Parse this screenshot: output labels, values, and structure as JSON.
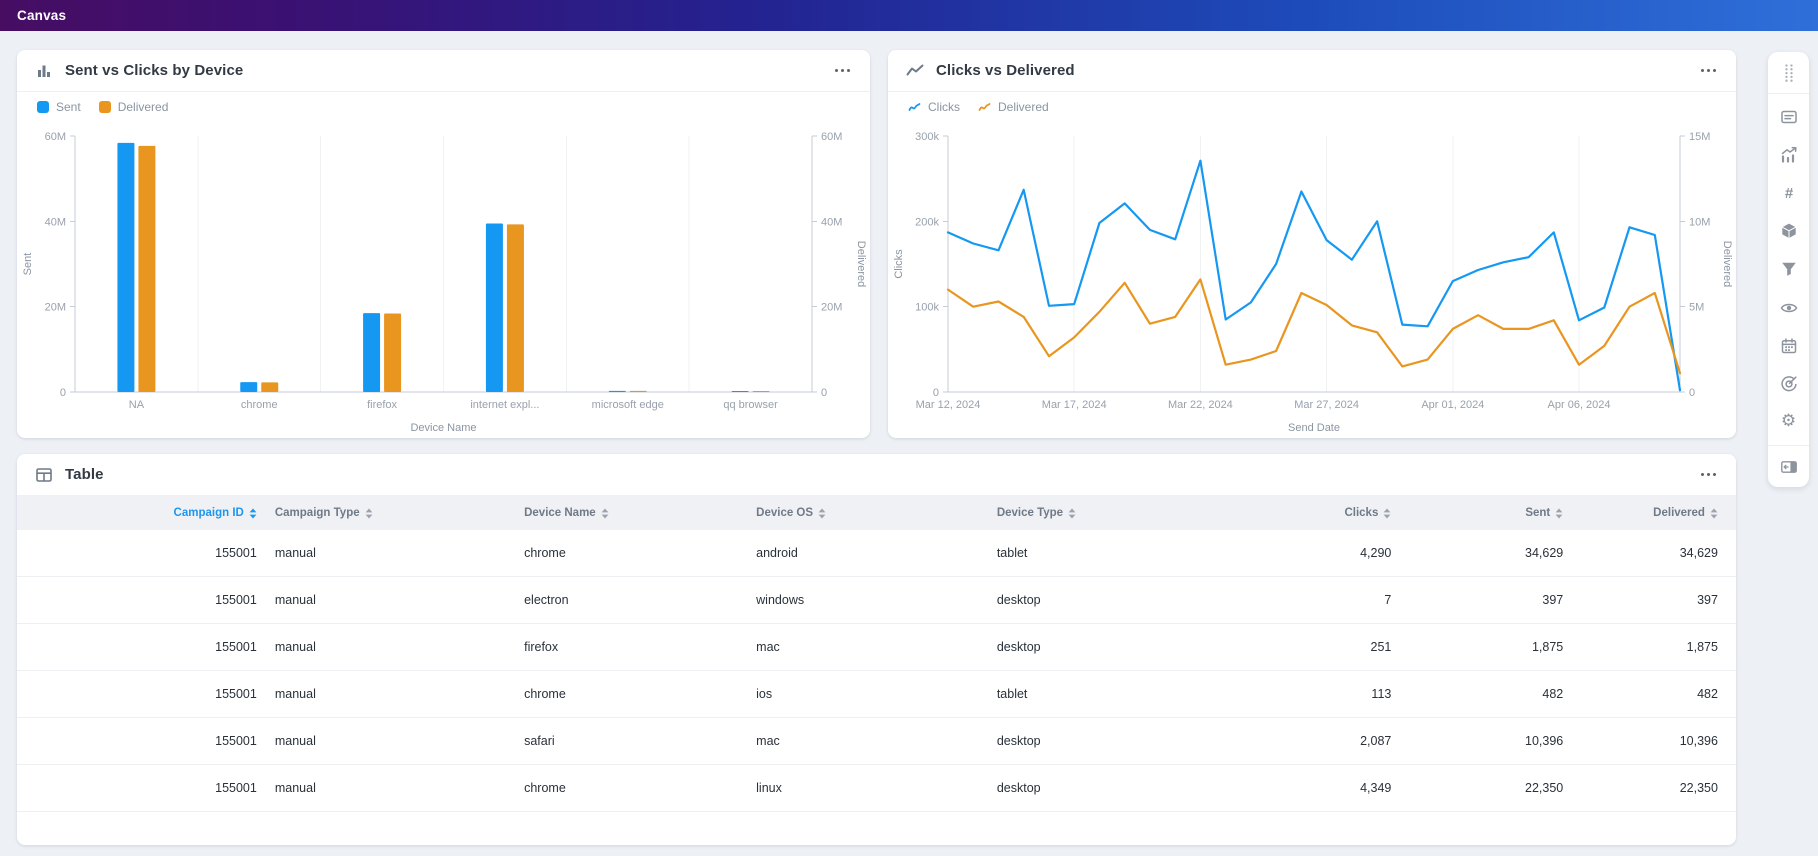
{
  "top_bar": {
    "title": "Canvas"
  },
  "colors": {
    "blue": "#1598f2",
    "orange": "#e8961f",
    "axis_line": "#c6ccd4",
    "grid_line": "#f1f2f4",
    "tick_text": "#98a1ac",
    "axis_title": "#8b95a1",
    "sorted_header": "#1a97f0"
  },
  "cards": {
    "bar": {
      "title": "Sent vs Clicks by Device"
    },
    "line": {
      "title": "Clicks vs Delivered"
    },
    "table": {
      "title": "Table"
    }
  },
  "chart_data": [
    {
      "type": "bar",
      "title": "Sent vs Clicks by Device",
      "categories": [
        "NA",
        "chrome",
        "firefox",
        "internet expl...",
        "microsoft edge",
        "qq browser"
      ],
      "series": [
        {
          "name": "Sent",
          "axis": "left",
          "color": "#1598f2",
          "values": [
            58400000,
            2300000,
            18500000,
            39500000,
            260000,
            130000
          ]
        },
        {
          "name": "Delivered",
          "axis": "right",
          "color": "#e8961f",
          "values": [
            57700000,
            2250000,
            18400000,
            39300000,
            250000,
            150000
          ]
        }
      ],
      "xlabel": "Device Name",
      "ylabel_left": "Sent",
      "ylabel_right": "Delivered",
      "ylim_left": [
        0,
        60000000
      ],
      "ylim_right": [
        0,
        60000000
      ],
      "yticks_left": [
        "0",
        "20M",
        "40M",
        "60M"
      ],
      "yticks_right": [
        "0",
        "20M",
        "40M",
        "60M"
      ],
      "legend_position": "top-left",
      "grid": "vertical-category-boundaries"
    },
    {
      "type": "line",
      "title": "Clicks vs Delivered",
      "x": [
        "Mar 12, 2024",
        "Mar 13, 2024",
        "Mar 14, 2024",
        "Mar 15, 2024",
        "Mar 16, 2024",
        "Mar 17, 2024",
        "Mar 18, 2024",
        "Mar 19, 2024",
        "Mar 20, 2024",
        "Mar 21, 2024",
        "Mar 22, 2024",
        "Mar 23, 2024",
        "Mar 24, 2024",
        "Mar 25, 2024",
        "Mar 26, 2024",
        "Mar 27, 2024",
        "Mar 28, 2024",
        "Mar 29, 2024",
        "Mar 30, 2024",
        "Mar 31, 2024",
        "Apr 01, 2024",
        "Apr 02, 2024",
        "Apr 03, 2024",
        "Apr 04, 2024",
        "Apr 05, 2024",
        "Apr 06, 2024",
        "Apr 07, 2024",
        "Apr 08, 2024",
        "Apr 09, 2024",
        "Apr 10, 2024"
      ],
      "xtick_labels": [
        "Mar 12, 2024",
        "Mar 17, 2024",
        "Mar 22, 2024",
        "Mar 27, 2024",
        "Apr 01, 2024",
        "Apr 06, 2024"
      ],
      "xtick_index": [
        0,
        5,
        10,
        15,
        20,
        25
      ],
      "series": [
        {
          "name": "Clicks",
          "axis": "left",
          "color": "#1598f2",
          "values": [
            187000,
            174000,
            166000,
            237000,
            101000,
            103000,
            198000,
            221000,
            190000,
            179000,
            271000,
            85000,
            105000,
            150000,
            235000,
            178000,
            155000,
            200000,
            79000,
            77000,
            130000,
            143000,
            152000,
            158000,
            187000,
            84000,
            99000,
            193000,
            184000,
            2000
          ]
        },
        {
          "name": "Delivered",
          "axis": "right",
          "color": "#e8961f",
          "values": [
            6000000,
            5000000,
            5300000,
            4400000,
            2100000,
            3200000,
            4700000,
            6400000,
            4000000,
            4400000,
            6600000,
            1600000,
            1900000,
            2400000,
            5800000,
            5100000,
            3900000,
            3500000,
            1500000,
            1900000,
            3700000,
            4500000,
            3700000,
            3700000,
            4200000,
            1600000,
            2700000,
            5000000,
            5800000,
            1100000
          ]
        }
      ],
      "xlabel": "Send Date",
      "ylabel_left": "Clicks",
      "ylabel_right": "Delivered",
      "ylim_left": [
        0,
        300000
      ],
      "ylim_right": [
        0,
        15000000
      ],
      "yticks_left": [
        "0",
        "100k",
        "200k",
        "300k"
      ],
      "yticks_right": [
        "0",
        "5M",
        "10M",
        "15M"
      ],
      "legend_position": "top-left",
      "grid": "vertical-at-xticks"
    }
  ],
  "table": {
    "title": "Table",
    "columns": [
      {
        "label": "Campaign ID",
        "align": "right",
        "sorted": true
      },
      {
        "label": "Campaign Type",
        "align": "left",
        "sorted": false
      },
      {
        "label": "Device Name",
        "align": "left",
        "sorted": false
      },
      {
        "label": "Device OS",
        "align": "left",
        "sorted": false
      },
      {
        "label": "Device Type",
        "align": "left",
        "sorted": false
      },
      {
        "label": "Clicks",
        "align": "right",
        "sorted": false
      },
      {
        "label": "Sent",
        "align": "right",
        "sorted": false
      },
      {
        "label": "Delivered",
        "align": "right",
        "sorted": false
      }
    ],
    "rows": [
      [
        "155001",
        "manual",
        "chrome",
        "android",
        "tablet",
        "4,290",
        "34,629",
        "34,629"
      ],
      [
        "155001",
        "manual",
        "electron",
        "windows",
        "desktop",
        "7",
        "397",
        "397"
      ],
      [
        "155001",
        "manual",
        "firefox",
        "mac",
        "desktop",
        "251",
        "1,875",
        "1,875"
      ],
      [
        "155001",
        "manual",
        "chrome",
        "ios",
        "tablet",
        "113",
        "482",
        "482"
      ],
      [
        "155001",
        "manual",
        "safari",
        "mac",
        "desktop",
        "2,087",
        "10,396",
        "10,396"
      ],
      [
        "155001",
        "manual",
        "chrome",
        "linux",
        "desktop",
        "4,349",
        "22,350",
        "22,350"
      ]
    ]
  },
  "sidebar": {
    "drag_handle": "drag-handle",
    "tools": [
      "text-card",
      "chart-trend",
      "hash",
      "cube",
      "filter",
      "eye",
      "calendar",
      "goal",
      "settings"
    ],
    "collapse": "collapse"
  }
}
